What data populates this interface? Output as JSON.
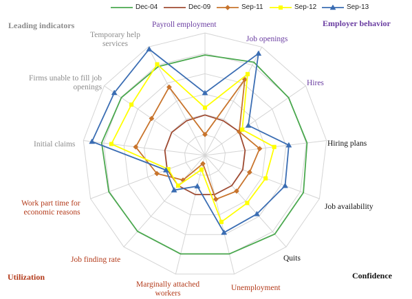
{
  "chart_data": {
    "type": "radar",
    "title": "",
    "axes": [
      "Payroll employment",
      "Job openings",
      "Hires",
      "Hiring plans",
      "Job availability",
      "Quits",
      "Unemployment",
      "Marginally attached workers",
      "Job finding rate",
      "Work part time for economic reasons",
      "Initial claims",
      "Firms unable to fill job openings",
      "Temporary help services"
    ],
    "axis_label_lines": [
      [
        "Payroll employment"
      ],
      [
        "Job openings"
      ],
      [
        "Hires"
      ],
      [
        "Hiring plans"
      ],
      [
        "Job availability"
      ],
      [
        "Quits"
      ],
      [
        "Unemployment"
      ],
      [
        "Marginally attached",
        "workers"
      ],
      [
        "Job finding rate"
      ],
      [
        "Work part time for",
        "economic reasons"
      ],
      [
        "Initial claims"
      ],
      [
        "Firms unable to fill job",
        "openings"
      ],
      [
        "Temporary help",
        "services"
      ]
    ],
    "rlim": [
      0,
      1
    ],
    "rings": 6,
    "series": [
      {
        "name": "Dec-04",
        "color": "#4aa84e",
        "marker": "none",
        "values": [
          0.82,
          0.86,
          0.83,
          0.84,
          0.86,
          0.86,
          0.83,
          0.83,
          0.83,
          0.84,
          0.85,
          0.83,
          0.82
        ]
      },
      {
        "name": "Dec-09",
        "color": "#a04b32",
        "marker": "none",
        "values": [
          0.33,
          0.32,
          0.34,
          0.33,
          0.33,
          0.33,
          0.33,
          0.33,
          0.33,
          0.33,
          0.33,
          0.33,
          0.32
        ]
      },
      {
        "name": "Sep-11",
        "color": "#c8742c",
        "marker": "diamond",
        "values": [
          0.17,
          0.7,
          0.34,
          0.45,
          0.39,
          0.39,
          0.37,
          0.07,
          0.27,
          0.42,
          0.57,
          0.53,
          0.63
        ]
      },
      {
        "name": "Sep-12",
        "color": "#ffff00",
        "marker": "square",
        "values": [
          0.39,
          0.75,
          0.37,
          0.57,
          0.53,
          0.52,
          0.56,
          0.12,
          0.33,
          0.32,
          0.77,
          0.73,
          0.84
        ]
      },
      {
        "name": "Sep-13",
        "color": "#3a6db3",
        "marker": "triangle",
        "values": [
          0.51,
          0.94,
          0.43,
          0.69,
          0.7,
          0.64,
          0.65,
          0.26,
          0.38,
          0.34,
          0.93,
          0.9,
          0.98
        ]
      }
    ],
    "groups": [
      {
        "label": "Leading indicators",
        "color": "#8c8c8c"
      },
      {
        "label": "Employer behavior",
        "color": "#6a3da1"
      },
      {
        "label": "Confidence",
        "color": "#111111"
      },
      {
        "label": "Utilization",
        "color": "#b33a1a"
      }
    ],
    "axis_label_colors": [
      "#6a3da1",
      "#6a3da1",
      "#6a3da1",
      "#111111",
      "#111111",
      "#111111",
      "#b33a1a",
      "#b33a1a",
      "#b33a1a",
      "#b33a1a",
      "#8c8c8c",
      "#8c8c8c",
      "#8c8c8c"
    ]
  }
}
